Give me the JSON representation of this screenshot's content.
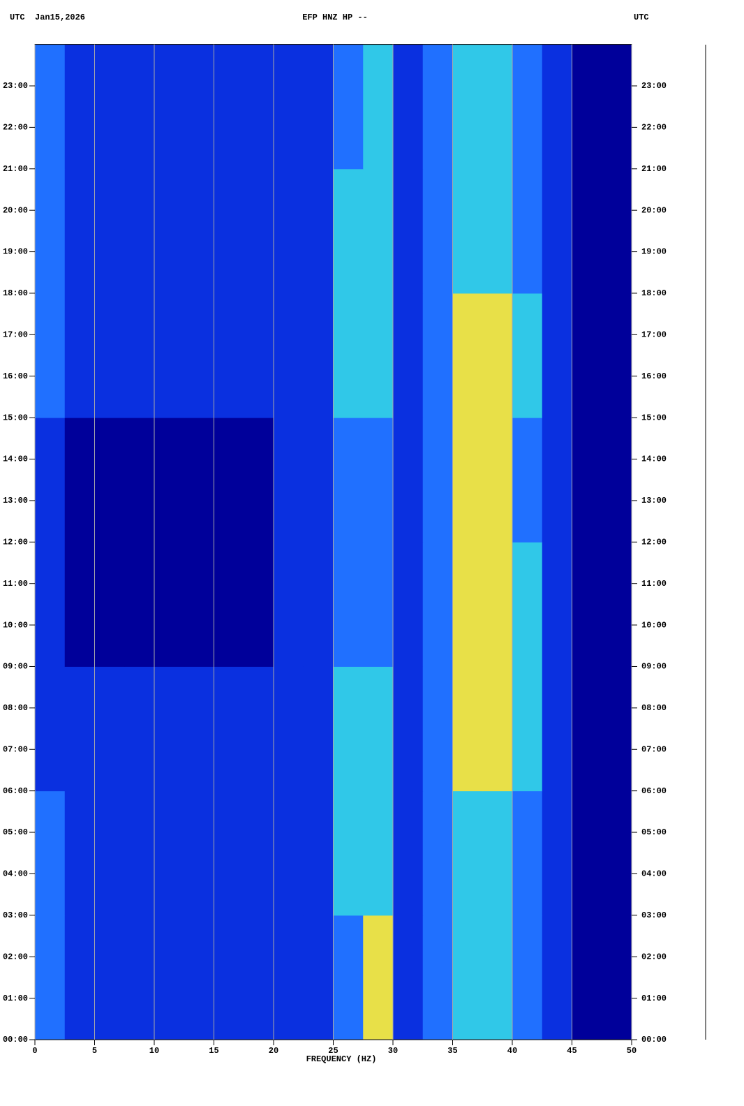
{
  "chart_data": {
    "type": "heatmap",
    "title": "EFP HNZ HP --",
    "left_label": "UTC",
    "date": "Jan15,2026",
    "right_label": "UTC",
    "x_label": "FREQUENCY (HZ)",
    "xlim": [
      0,
      50
    ],
    "xticks": [
      0,
      5,
      10,
      15,
      20,
      25,
      30,
      35,
      40,
      45,
      50
    ],
    "ylim": [
      0,
      24
    ],
    "yticks": [
      {
        "value": 0,
        "label": "00:00"
      },
      {
        "value": 1,
        "label": "01:00"
      },
      {
        "value": 2,
        "label": "02:00"
      },
      {
        "value": 3,
        "label": "03:00"
      },
      {
        "value": 4,
        "label": "04:00"
      },
      {
        "value": 5,
        "label": "05:00"
      },
      {
        "value": 6,
        "label": "06:00"
      },
      {
        "value": 7,
        "label": "07:00"
      },
      {
        "value": 8,
        "label": "08:00"
      },
      {
        "value": 9,
        "label": "09:00"
      },
      {
        "value": 10,
        "label": "10:00"
      },
      {
        "value": 11,
        "label": "11:00"
      },
      {
        "value": 12,
        "label": "12:00"
      },
      {
        "value": 13,
        "label": "13:00"
      },
      {
        "value": 14,
        "label": "14:00"
      },
      {
        "value": 15,
        "label": "15:00"
      },
      {
        "value": 16,
        "label": "16:00"
      },
      {
        "value": 17,
        "label": "17:00"
      },
      {
        "value": 18,
        "label": "18:00"
      },
      {
        "value": 19,
        "label": "19:00"
      },
      {
        "value": 20,
        "label": "20:00"
      },
      {
        "value": 21,
        "label": "21:00"
      },
      {
        "value": 22,
        "label": "22:00"
      },
      {
        "value": 23,
        "label": "23:00"
      }
    ],
    "grid": true,
    "grid_color": "#a8a8a8",
    "colorscale": [
      "#00009a",
      "#0a30e0",
      "#2070ff",
      "#30c8e8",
      "#e8e048",
      "#e02020"
    ],
    "x_bins": [
      0,
      2.5,
      5,
      7.5,
      10,
      12.5,
      15,
      17.5,
      20,
      22.5,
      25,
      27.5,
      30,
      32.5,
      35,
      37.5,
      40,
      42.5,
      45,
      47.5,
      50
    ],
    "y_bins": [
      0,
      3,
      6,
      9,
      12,
      15,
      18,
      21,
      24
    ],
    "z": [
      [
        2,
        1,
        1,
        1,
        1,
        1,
        1,
        1,
        1,
        1,
        2,
        4,
        1,
        2,
        3,
        3,
        2,
        1,
        0,
        0
      ],
      [
        2,
        1,
        1,
        1,
        1,
        1,
        1,
        1,
        1,
        1,
        3,
        3,
        1,
        2,
        3,
        3,
        2,
        1,
        0,
        0
      ],
      [
        1,
        1,
        1,
        1,
        1,
        1,
        1,
        1,
        1,
        1,
        3,
        3,
        1,
        2,
        4,
        4,
        3,
        1,
        0,
        0
      ],
      [
        1,
        0,
        0,
        0,
        0,
        0,
        0,
        0,
        1,
        1,
        2,
        2,
        1,
        2,
        4,
        4,
        3,
        1,
        0,
        0
      ],
      [
        1,
        0,
        0,
        0,
        0,
        0,
        0,
        0,
        1,
        1,
        2,
        2,
        1,
        2,
        4,
        4,
        2,
        1,
        0,
        0
      ],
      [
        2,
        1,
        1,
        1,
        1,
        1,
        1,
        1,
        1,
        1,
        3,
        3,
        1,
        2,
        4,
        4,
        3,
        1,
        0,
        0
      ],
      [
        2,
        1,
        1,
        1,
        1,
        1,
        1,
        1,
        1,
        1,
        3,
        3,
        1,
        2,
        3,
        3,
        2,
        1,
        0,
        0
      ],
      [
        2,
        1,
        1,
        1,
        1,
        1,
        1,
        1,
        1,
        1,
        2,
        3,
        1,
        2,
        3,
        3,
        2,
        1,
        0,
        0
      ]
    ]
  }
}
